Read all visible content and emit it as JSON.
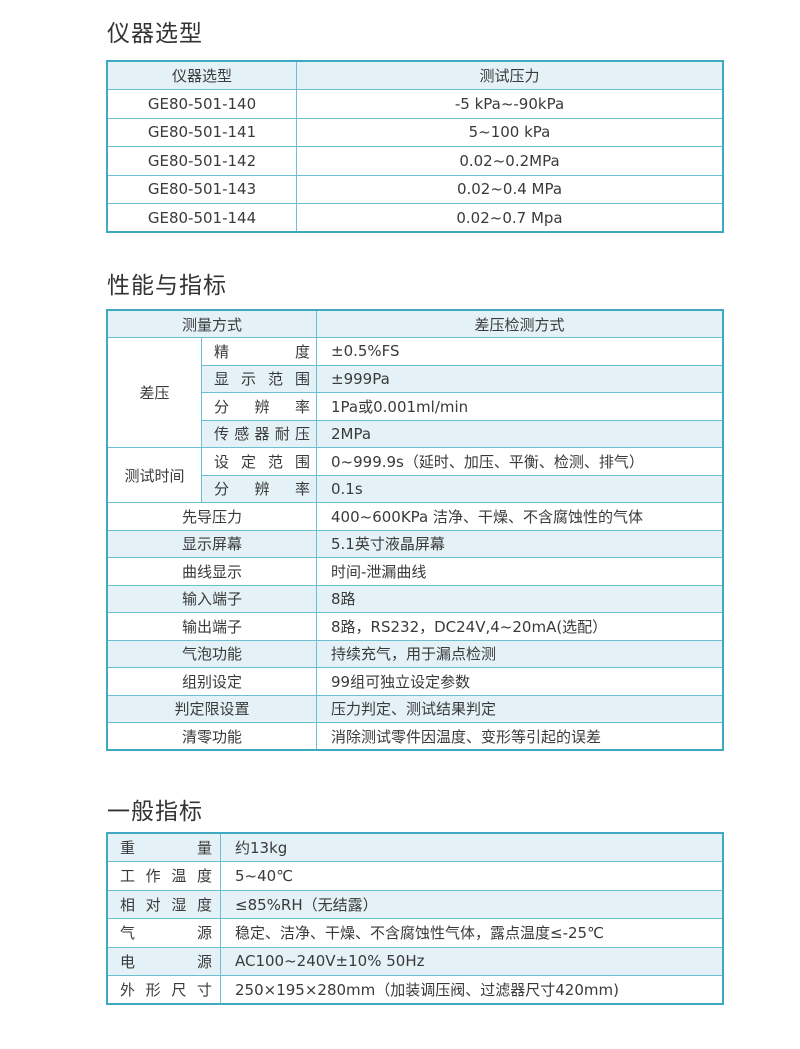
{
  "section1": {
    "title": "仪器选型",
    "headers": [
      "仪器选型",
      "测试压力"
    ],
    "rows": [
      [
        "GE80-501-140",
        "-5 kPa~-90kPa"
      ],
      [
        "GE80-501-141",
        "5~100 kPa"
      ],
      [
        "GE80-501-142",
        "0.02~0.2MPa"
      ],
      [
        "GE80-501-143",
        "0.02~0.4 MPa"
      ],
      [
        "GE80-501-144",
        "0.02~0.7 Mpa"
      ]
    ]
  },
  "section2": {
    "title": "性能与指标",
    "headers": [
      "测量方式",
      "差压检测方式"
    ],
    "groups": [
      {
        "label": "差压",
        "rows": [
          [
            "精　　度",
            "±0.5%FS"
          ],
          [
            "显示范围",
            "±999Pa"
          ],
          [
            "分 辨 率",
            "1Pa或0.001ml/min"
          ],
          [
            "传感器耐压",
            "2MPa"
          ]
        ]
      },
      {
        "label": "测试时间",
        "rows": [
          [
            "设定范围",
            "0~999.9s（延时、加压、平衡、检测、排气）"
          ],
          [
            "分 辨 率",
            "0.1s"
          ]
        ]
      }
    ],
    "rows": [
      [
        "先导压力",
        "400~600KPa 洁净、干燥、不含腐蚀性的气体"
      ],
      [
        "显示屏幕",
        "5.1英寸液晶屏幕"
      ],
      [
        "曲线显示",
        "时间-泄漏曲线"
      ],
      [
        "输入端子",
        "8路"
      ],
      [
        "输出端子",
        "8路，RS232，DC24V,4~20mA(选配）"
      ],
      [
        "气泡功能",
        "持续充气，用于漏点检测"
      ],
      [
        "组别设定",
        "99组可独立设定参数"
      ],
      [
        "判定限设置",
        "压力判定、测试结果判定"
      ],
      [
        "清零功能",
        "消除测试零件因温度、变形等引起的误差"
      ]
    ]
  },
  "section3": {
    "title": "一般指标",
    "rows": [
      [
        "重　　量",
        "约13kg"
      ],
      [
        "工作温度",
        "5~40℃"
      ],
      [
        "相对湿度",
        "≤85%RH（无结露）"
      ],
      [
        "气　　源",
        "稳定、洁净、干燥、不含腐蚀性气体，露点温度≤-25℃"
      ],
      [
        "电　　源",
        "AC100~240V±10% 50Hz"
      ],
      [
        "外形尺寸",
        "250×195×280mm（加装调压阀、过滤器尺寸420mm)"
      ]
    ]
  },
  "colors": {
    "border": "#3fa9c2",
    "row_shade": "#e4f2f8",
    "text": "#3a3a3a"
  }
}
